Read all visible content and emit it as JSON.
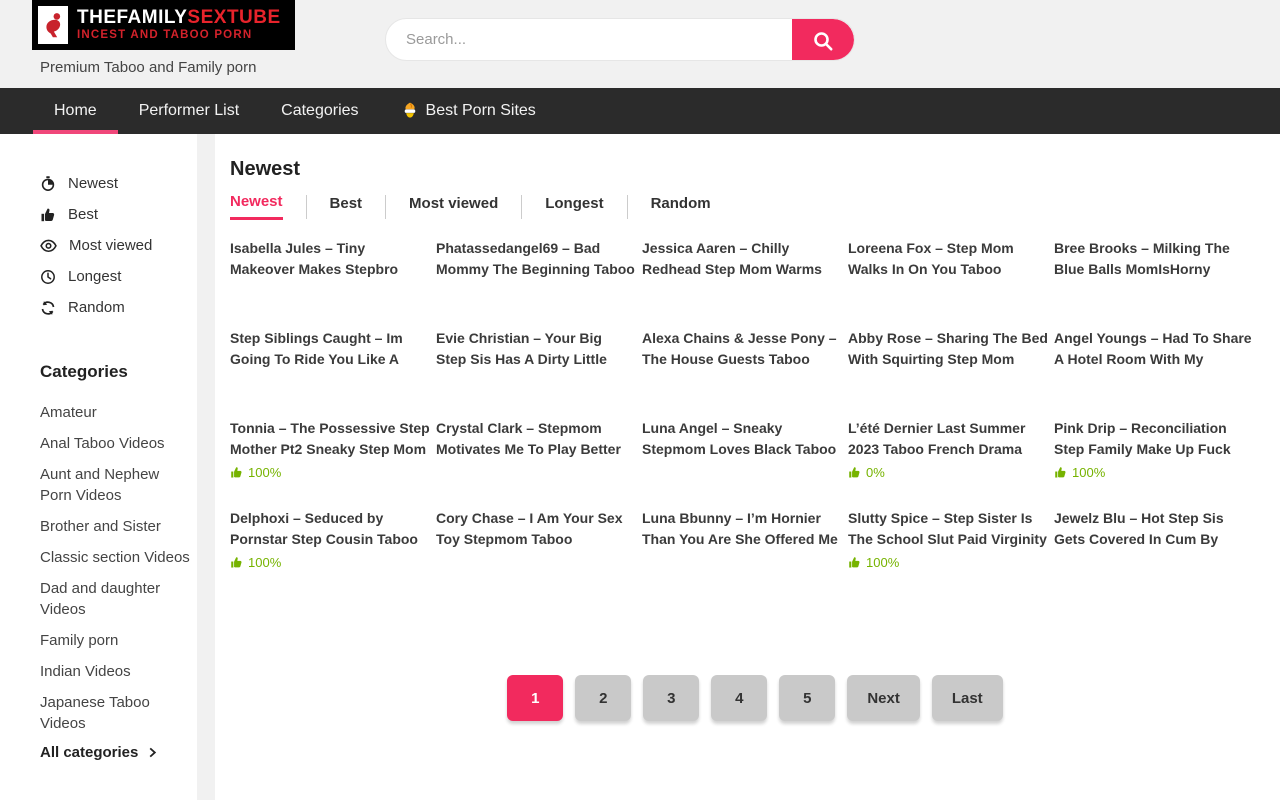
{
  "colors": {
    "accent": "#f22a5e",
    "logo_red": "#e8232b",
    "nav_bg": "#2b2b2b",
    "rating_green": "#76b300",
    "page_bg": "#f1f1f1"
  },
  "header": {
    "logo_title_white": "THEFAMILY",
    "logo_title_red": "SEXTUBE",
    "logo_subtitle": "INCEST AND TABOO PORN",
    "tagline": "Premium Taboo and Family porn",
    "search_placeholder": "Search..."
  },
  "nav": {
    "items": [
      {
        "label": "Home",
        "active": true
      },
      {
        "label": "Performer List"
      },
      {
        "label": "Categories"
      },
      {
        "label": "Best Porn Sites",
        "icon": "cool-face-icon"
      }
    ]
  },
  "sidebar": {
    "sort_items": [
      {
        "icon": "newest-icon",
        "label": "Newest"
      },
      {
        "icon": "thumb-up-icon",
        "label": "Best"
      },
      {
        "icon": "eye-icon",
        "label": "Most viewed"
      },
      {
        "icon": "clock-icon",
        "label": "Longest"
      },
      {
        "icon": "refresh-icon",
        "label": "Random"
      }
    ],
    "categories_heading": "Categories",
    "categories": [
      "Amateur",
      "Anal Taboo Videos",
      "Aunt and Nephew Porn Videos",
      "Brother and Sister",
      "Classic section Videos",
      "Dad and daughter Videos",
      "Family porn",
      "Indian Videos",
      "Japanese Taboo Videos"
    ],
    "all_categories_label": "All categories"
  },
  "main": {
    "heading": "Newest",
    "tabs": [
      {
        "label": "Newest",
        "active": true
      },
      {
        "label": "Best"
      },
      {
        "label": "Most viewed"
      },
      {
        "label": "Longest"
      },
      {
        "label": "Random"
      }
    ],
    "videos": [
      {
        "title": "Isabella Jules – Tiny Makeover Makes Stepbro Cum Over Her"
      },
      {
        "title": "Phatassedangel69 – Bad Mommy The Beginning Taboo"
      },
      {
        "title": "Jessica Aaren – Chilly Redhead Step Mom Warms Up"
      },
      {
        "title": "Loreena Fox – Step Mom Walks In On You Taboo Caught"
      },
      {
        "title": "Bree Brooks – Milking The Blue Balls MomIsHorny Taboo"
      },
      {
        "title": "Step Siblings Caught – Im Going To Ride You Like A"
      },
      {
        "title": "Evie Christian – Your Big Step Sis Has A Dirty Little Secret"
      },
      {
        "title": "Alexa Chains & Jesse Pony – The House Guests Taboo"
      },
      {
        "title": "Abby Rose – Sharing The Bed With Squirting Step Mom"
      },
      {
        "title": "Angel Youngs – Had To Share A Hotel Room With My Stepbro"
      },
      {
        "title": "Tonnia – The Possessive Step Mother Pt2 Sneaky Step Mom",
        "rating": "100%"
      },
      {
        "title": "Crystal Clark – Stepmom Motivates Me To Play Better"
      },
      {
        "title": "Luna Angel – Sneaky Stepmom Loves Black Taboo"
      },
      {
        "title": "L’été Dernier Last Summer 2023 Taboo French Drama",
        "rating": "0%"
      },
      {
        "title": "Pink Drip – Reconciliation Step Family Make Up Fuck",
        "rating": "100%"
      },
      {
        "title": "Delphoxi – Seduced by Pornstar Step Cousin Taboo",
        "rating": "100%"
      },
      {
        "title": "Cory Chase – I Am Your Sex Toy Stepmom Taboo Creampie"
      },
      {
        "title": "Luna Bbunny – I’m Hornier Than You Are She Offered Me"
      },
      {
        "title": "Slutty Spice – Step Sister Is The School Slut Paid Virginity",
        "rating": "100%"
      },
      {
        "title": "Jewelz Blu – Hot Step Sis Gets Covered In Cum By Luke"
      }
    ]
  },
  "pagination": {
    "pages": [
      "1",
      "2",
      "3",
      "4",
      "5"
    ],
    "active_page": "1",
    "next_label": "Next",
    "last_label": "Last"
  }
}
